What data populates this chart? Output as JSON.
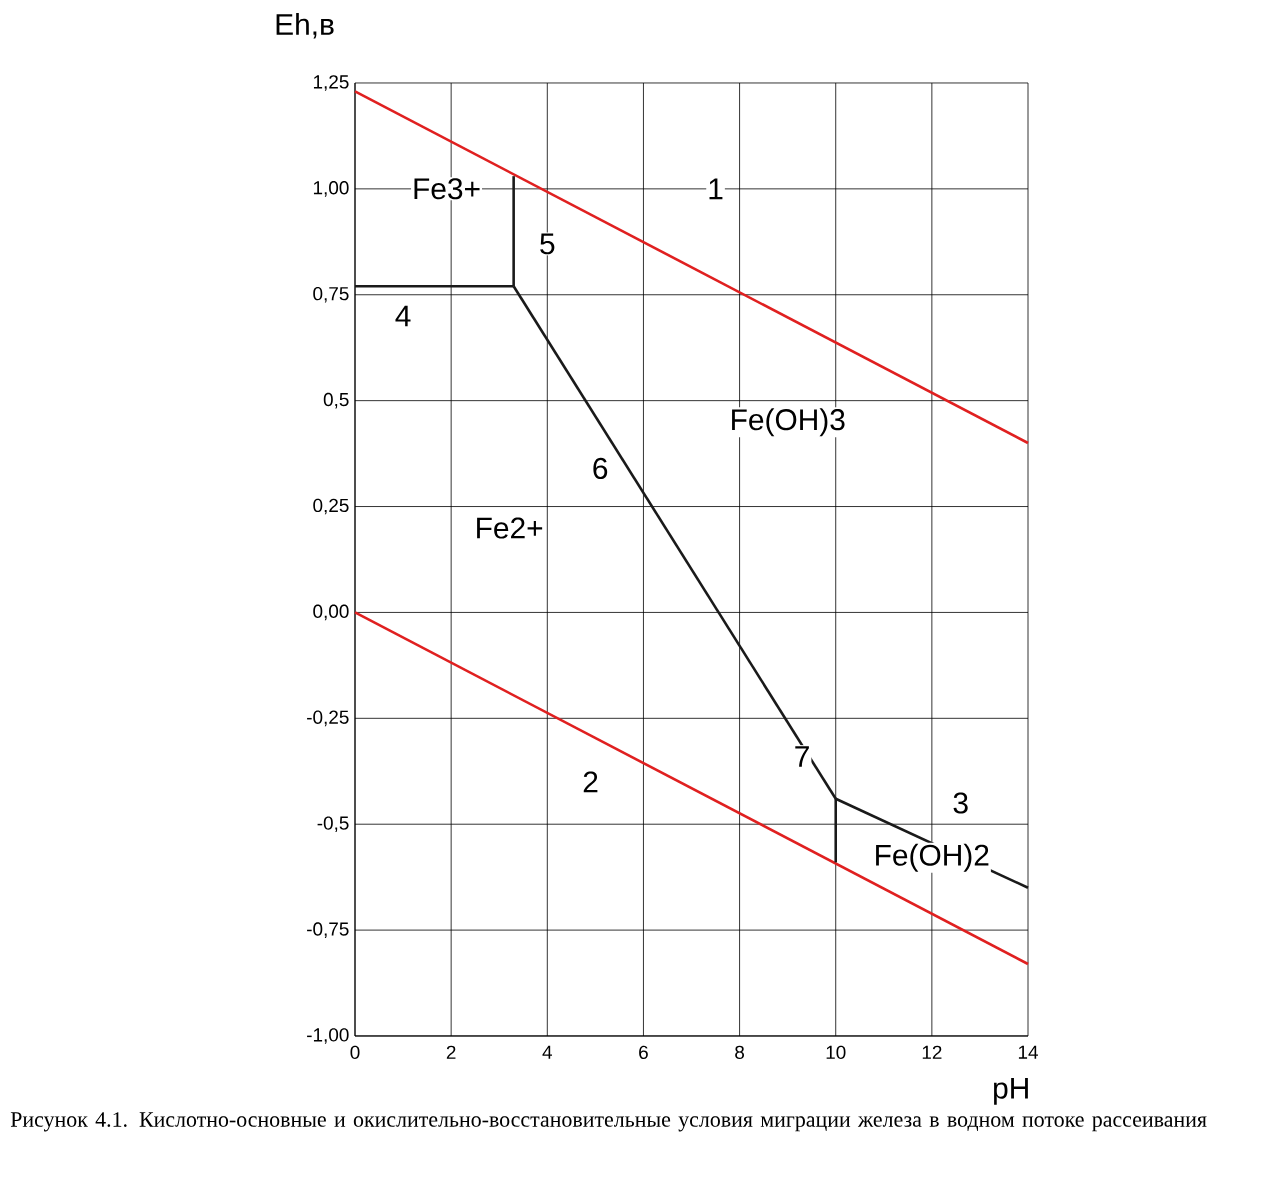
{
  "chart_data": {
    "type": "line",
    "xlabel": "pH",
    "ylabel": "Eh,в",
    "xlim": [
      0,
      14
    ],
    "ylim": [
      -1.0,
      1.25
    ],
    "xticks": [
      0,
      2,
      4,
      6,
      8,
      10,
      12,
      14
    ],
    "yticks": [
      {
        "value": 1.25,
        "label": "1,25"
      },
      {
        "value": 1.0,
        "label": "1,00"
      },
      {
        "value": 0.75,
        "label": "0,75"
      },
      {
        "value": 0.5,
        "label": "0,5"
      },
      {
        "value": 0.25,
        "label": "0,25"
      },
      {
        "value": 0,
        "label": "0,00"
      },
      {
        "value": -0.25,
        "label": "-0,25"
      },
      {
        "value": -0.5,
        "label": "-0,5"
      },
      {
        "value": -0.75,
        "label": "-0,75"
      },
      {
        "value": -1.0,
        "label": "-1,00"
      }
    ],
    "grid": true,
    "marker": "none",
    "line_style": "solid",
    "series": [
      {
        "color": "#e02020",
        "x": [
          0,
          14
        ],
        "values": [
          1.23,
          0.4
        ]
      },
      {
        "color": "#e02020",
        "x": [
          0,
          14
        ],
        "values": [
          0,
          -0.83
        ]
      },
      {
        "color": "#1a1a1a",
        "x": [
          0,
          3.3
        ],
        "values": [
          0.77,
          0.77
        ]
      },
      {
        "color": "#1a1a1a",
        "x": [
          3.3,
          3.3
        ],
        "values": [
          0.77,
          1.03
        ]
      },
      {
        "color": "#1a1a1a",
        "x": [
          3.3,
          10
        ],
        "values": [
          0.77,
          -0.44
        ]
      },
      {
        "color": "#1a1a1a",
        "x": [
          10,
          10
        ],
        "values": [
          -0.44,
          -0.59
        ]
      },
      {
        "color": "#1a1a1a",
        "x": [
          10,
          14
        ],
        "values": [
          -0.44,
          -0.65
        ]
      }
    ],
    "annotations": [
      {
        "text": "1",
        "x": 7.5,
        "y": 1.0
      },
      "Fe3+",
      {
        "text": "5",
        "x": 4.0,
        "y": 0.87
      },
      {
        "text": "4",
        "x": 1.0,
        "y": 0.7
      },
      "Fe(OH)3",
      {
        "text": "6",
        "x": 5.1,
        "y": 0.34
      },
      "Fe2+",
      {
        "text": "2",
        "x": 4.9,
        "y": -0.4
      },
      {
        "text": "7",
        "x": 9.3,
        "y": -0.34
      },
      {
        "text": "3",
        "x": 12.6,
        "y": -0.45
      },
      "Fe(OH)2",
      "Рисунок 4.1. Кислотно-основные и окислительно-восстановительные  условия миграции железа в водном потоке рассеивания"
    ]
  }
}
